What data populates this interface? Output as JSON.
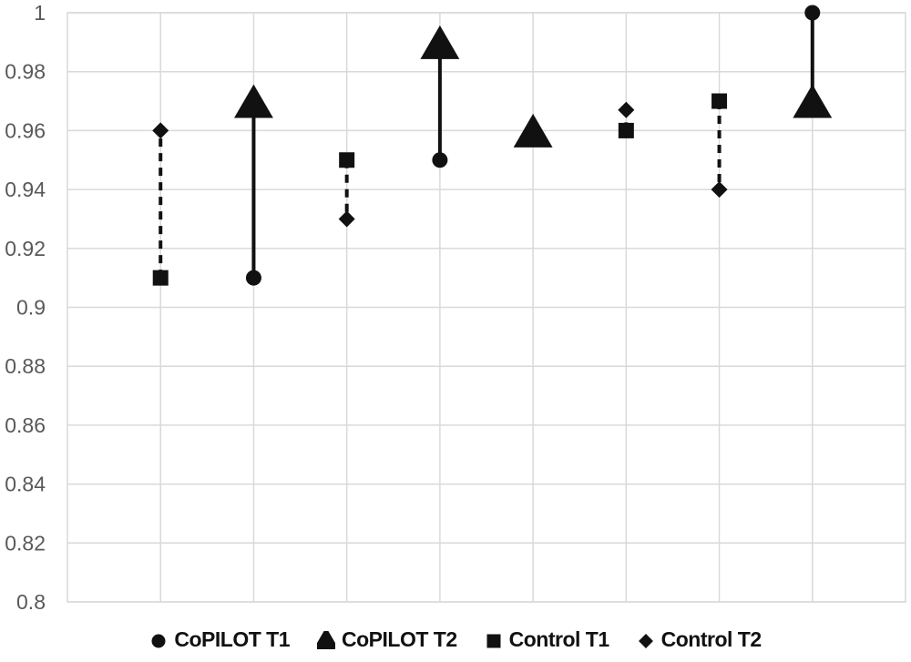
{
  "chart_data": {
    "type": "scatter",
    "title": "",
    "xlabel": "",
    "ylabel": "",
    "ylim": [
      0.8,
      1.0
    ],
    "ytick_step": 0.02,
    "ytick_labels": [
      "1",
      "0.98",
      "0.96",
      "0.94",
      "0.92",
      "0.9",
      "0.88",
      "0.86",
      "0.84",
      "0.82",
      "0.8"
    ],
    "xlim": [
      0,
      9
    ],
    "xtick_labels_shown": false,
    "grid": true,
    "legend_position": "bottom",
    "series": [
      {
        "name": "CoPILOT T1",
        "marker": "circle",
        "x": [
          2,
          4,
          5,
          8
        ],
        "values": [
          0.91,
          0.95,
          0.96,
          1.0
        ]
      },
      {
        "name": "CoPILOT T2",
        "marker": "triangle",
        "x": [
          2,
          4,
          5,
          8
        ],
        "values": [
          0.97,
          0.99,
          0.96,
          0.97
        ]
      },
      {
        "name": "Control T1",
        "marker": "square",
        "x": [
          1,
          3,
          6,
          7
        ],
        "values": [
          0.91,
          0.95,
          0.96,
          0.97
        ]
      },
      {
        "name": "Control T2",
        "marker": "diamond",
        "x": [
          1,
          3,
          6,
          7
        ],
        "values": [
          0.96,
          0.93,
          0.967,
          0.94
        ]
      }
    ],
    "connectors": [
      {
        "x": 1,
        "from": 0.91,
        "to": 0.96,
        "style": "dashed"
      },
      {
        "x": 2,
        "from": 0.91,
        "to": 0.97,
        "style": "solid"
      },
      {
        "x": 3,
        "from": 0.95,
        "to": 0.93,
        "style": "dashed"
      },
      {
        "x": 4,
        "from": 0.95,
        "to": 0.99,
        "style": "solid"
      },
      {
        "x": 5,
        "from": 0.96,
        "to": 0.96,
        "style": "solid"
      },
      {
        "x": 6,
        "from": 0.96,
        "to": 0.967,
        "style": "dashed"
      },
      {
        "x": 7,
        "from": 0.97,
        "to": 0.94,
        "style": "dashed"
      },
      {
        "x": 8,
        "from": 1.0,
        "to": 0.97,
        "style": "solid"
      }
    ],
    "colors": {
      "marker": "#111111",
      "connector": "#111111",
      "gridline": "#d9d9d9",
      "axis_label": "#595959",
      "background": "#ffffff"
    }
  },
  "legend": {
    "items": [
      {
        "marker": "circle",
        "icon": "circle-marker-icon",
        "label": "CoPILOT T1"
      },
      {
        "marker": "triangle",
        "icon": "triangle-marker-icon",
        "label": "CoPILOT T2"
      },
      {
        "marker": "square",
        "icon": "square-marker-icon",
        "label": "Control T1"
      },
      {
        "marker": "diamond",
        "icon": "diamond-marker-icon",
        "label": "Control T2"
      }
    ]
  }
}
